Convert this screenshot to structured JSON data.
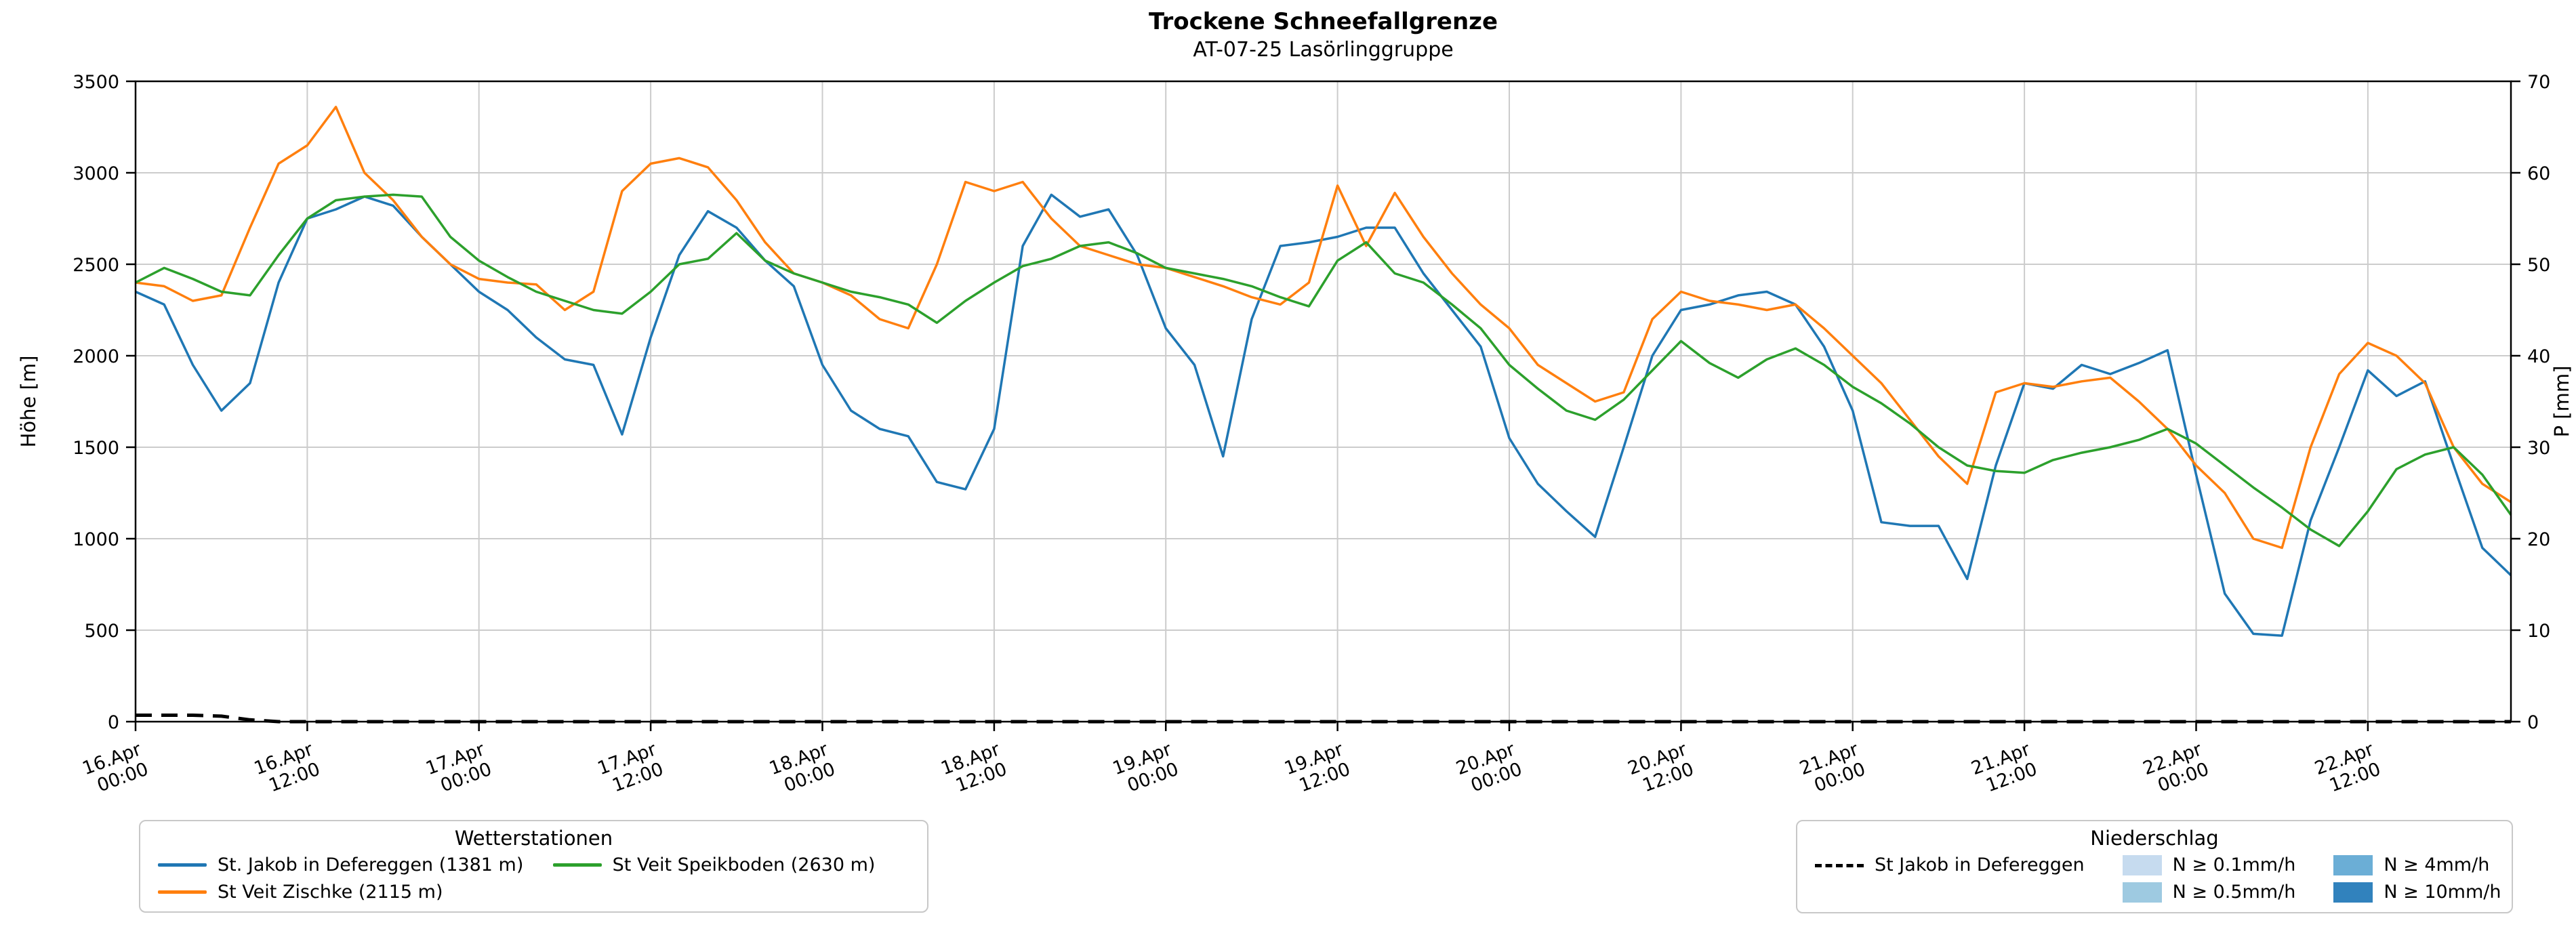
{
  "title": "Trockene Schneefallgrenze",
  "subtitle": "AT-07-25 Lasörlinggruppe",
  "axes": {
    "y_left_label": "Höhe [m]",
    "y_left_range": [
      0,
      3500
    ],
    "y_left_ticks": [
      0,
      500,
      1000,
      1500,
      2000,
      2500,
      3000,
      3500
    ],
    "y_right_label": "P [mm]",
    "y_right_range": [
      0,
      70
    ],
    "y_right_ticks": [
      0,
      10,
      20,
      30,
      40,
      50,
      60,
      70
    ],
    "x_range_hours": [
      0,
      166
    ],
    "x_tick_hours": [
      0,
      12,
      24,
      36,
      48,
      60,
      72,
      84,
      96,
      108,
      120,
      132,
      144,
      156
    ],
    "x_tick_labels": [
      [
        "16.Apr",
        "00:00"
      ],
      [
        "16.Apr",
        "12:00"
      ],
      [
        "17.Apr",
        "00:00"
      ],
      [
        "17.Apr",
        "12:00"
      ],
      [
        "18.Apr",
        "00:00"
      ],
      [
        "18.Apr",
        "12:00"
      ],
      [
        "19.Apr",
        "00:00"
      ],
      [
        "19.Apr",
        "12:00"
      ],
      [
        "20.Apr",
        "00:00"
      ],
      [
        "20.Apr",
        "12:00"
      ],
      [
        "21.Apr",
        "00:00"
      ],
      [
        "21.Apr",
        "12:00"
      ],
      [
        "22.Apr",
        "00:00"
      ],
      [
        "22.Apr",
        "12:00"
      ]
    ]
  },
  "chart_data": {
    "type": "line",
    "title": "Trockene Schneefallgrenze",
    "subtitle": "AT-07-25 Lasörlinggruppe",
    "x_unit": "hours since 16.Apr 00:00",
    "x_hours": [
      0,
      2,
      4,
      6,
      8,
      10,
      12,
      14,
      16,
      18,
      20,
      22,
      24,
      26,
      28,
      30,
      32,
      34,
      36,
      38,
      40,
      42,
      44,
      46,
      48,
      50,
      52,
      54,
      56,
      58,
      60,
      62,
      64,
      66,
      68,
      70,
      72,
      74,
      76,
      78,
      80,
      82,
      84,
      86,
      88,
      90,
      92,
      94,
      96,
      98,
      100,
      102,
      104,
      106,
      108,
      110,
      112,
      114,
      116,
      118,
      120,
      122,
      124,
      126,
      128,
      130,
      132,
      134,
      136,
      138,
      140,
      142,
      144,
      146,
      148,
      150,
      152,
      154,
      156,
      158,
      160,
      162,
      164,
      166
    ],
    "series": [
      {
        "name": "St. Jakob in Defereggen (1381 m)",
        "color": "#1f77b4",
        "axis": "left",
        "style": "solid",
        "values": [
          2350,
          2280,
          1950,
          1700,
          1850,
          2400,
          2750,
          2800,
          2870,
          2820,
          2650,
          2500,
          2350,
          2250,
          2100,
          1980,
          1950,
          1570,
          2100,
          2550,
          2790,
          2700,
          2520,
          2380,
          1950,
          1700,
          1600,
          1560,
          1310,
          1270,
          1600,
          2600,
          2880,
          2760,
          2800,
          2550,
          2150,
          1950,
          1450,
          2200,
          2600,
          2620,
          2650,
          2700,
          2700,
          2450,
          2250,
          2050,
          1550,
          1300,
          1150,
          1010,
          1500,
          2000,
          2250,
          2280,
          2330,
          2350,
          2280,
          2050,
          1700,
          1090,
          1070,
          1070,
          780,
          1400,
          1850,
          1820,
          1950,
          1900,
          1960,
          2030,
          1350,
          700,
          480,
          470,
          1100,
          1500,
          1920,
          1780,
          1860,
          1400,
          950,
          800
        ]
      },
      {
        "name": "St Veit Zischke (2115 m)",
        "color": "#ff7f0e",
        "axis": "left",
        "style": "solid",
        "values": [
          2400,
          2380,
          2300,
          2330,
          2700,
          3050,
          3150,
          3360,
          3000,
          2850,
          2650,
          2500,
          2420,
          2400,
          2390,
          2250,
          2350,
          2900,
          3050,
          3080,
          3030,
          2850,
          2620,
          2450,
          2400,
          2330,
          2200,
          2150,
          2500,
          2950,
          2900,
          2950,
          2750,
          2600,
          2550,
          2500,
          2480,
          2430,
          2380,
          2320,
          2280,
          2400,
          2930,
          2600,
          2890,
          2650,
          2450,
          2280,
          2150,
          1950,
          1850,
          1750,
          1800,
          2200,
          2350,
          2300,
          2280,
          2250,
          2280,
          2150,
          2000,
          1850,
          1650,
          1450,
          1300,
          1800,
          1850,
          1830,
          1860,
          1880,
          1750,
          1600,
          1400,
          1250,
          1000,
          950,
          1500,
          1900,
          2070,
          2000,
          1850,
          1500,
          1300,
          1200
        ]
      },
      {
        "name": "St Veit Speikboden (2630 m)",
        "color": "#2ca02c",
        "axis": "left",
        "style": "solid",
        "values": [
          2400,
          2480,
          2420,
          2350,
          2330,
          2550,
          2750,
          2850,
          2870,
          2880,
          2870,
          2650,
          2520,
          2430,
          2350,
          2300,
          2250,
          2230,
          2350,
          2500,
          2530,
          2670,
          2520,
          2450,
          2400,
          2350,
          2320,
          2280,
          2180,
          2300,
          2400,
          2490,
          2530,
          2600,
          2620,
          2560,
          2480,
          2450,
          2420,
          2380,
          2320,
          2270,
          2520,
          2620,
          2450,
          2400,
          2280,
          2150,
          1950,
          1820,
          1700,
          1650,
          1760,
          1920,
          2080,
          1960,
          1880,
          1980,
          2040,
          1950,
          1830,
          1740,
          1630,
          1500,
          1400,
          1370,
          1360,
          1430,
          1470,
          1500,
          1540,
          1600,
          1520,
          1400,
          1280,
          1170,
          1050,
          960,
          1150,
          1380,
          1460,
          1500,
          1350,
          1130
        ]
      },
      {
        "name": "St Jakob in Defereggen",
        "color": "#000000",
        "axis": "right",
        "style": "dashed",
        "values": [
          0.7,
          0.7,
          0.7,
          0.6,
          0.2,
          0,
          0,
          0,
          0,
          0,
          0,
          0,
          0,
          0,
          0,
          0,
          0,
          0,
          0,
          0,
          0,
          0,
          0,
          0,
          0,
          0,
          0,
          0,
          0,
          0,
          0,
          0,
          0,
          0,
          0,
          0,
          0,
          0,
          0,
          0,
          0,
          0,
          0,
          0,
          0,
          0,
          0,
          0,
          0,
          0,
          0,
          0,
          0,
          0,
          0,
          0,
          0,
          0,
          0,
          0,
          0,
          0,
          0,
          0,
          0,
          0,
          0,
          0,
          0,
          0,
          0,
          0,
          0,
          0,
          0,
          0,
          0,
          0,
          0,
          0,
          0,
          0,
          0,
          0
        ]
      }
    ]
  },
  "legends": {
    "stations": {
      "title": "Wetterstationen",
      "items": [
        {
          "label": "St. Jakob in Defereggen (1381 m)",
          "color": "#1f77b4"
        },
        {
          "label": "St Veit Speikboden (2630 m)",
          "color": "#2ca02c"
        },
        {
          "label": "St Veit Zischke (2115 m)",
          "color": "#ff7f0e"
        }
      ]
    },
    "precip": {
      "title": "Niederschlag",
      "dashed_item": {
        "label": "St Jakob in Defereggen",
        "color": "#000000",
        "style": "dashed"
      },
      "classes": [
        {
          "label": "N ≥ 0.1mm/h",
          "color": "#c6dbef"
        },
        {
          "label": "N ≥ 0.5mm/h",
          "color": "#9ecae1"
        },
        {
          "label": "N ≥ 4mm/h",
          "color": "#6baed6"
        },
        {
          "label": "N ≥ 10mm/h",
          "color": "#3182bd"
        }
      ]
    }
  }
}
